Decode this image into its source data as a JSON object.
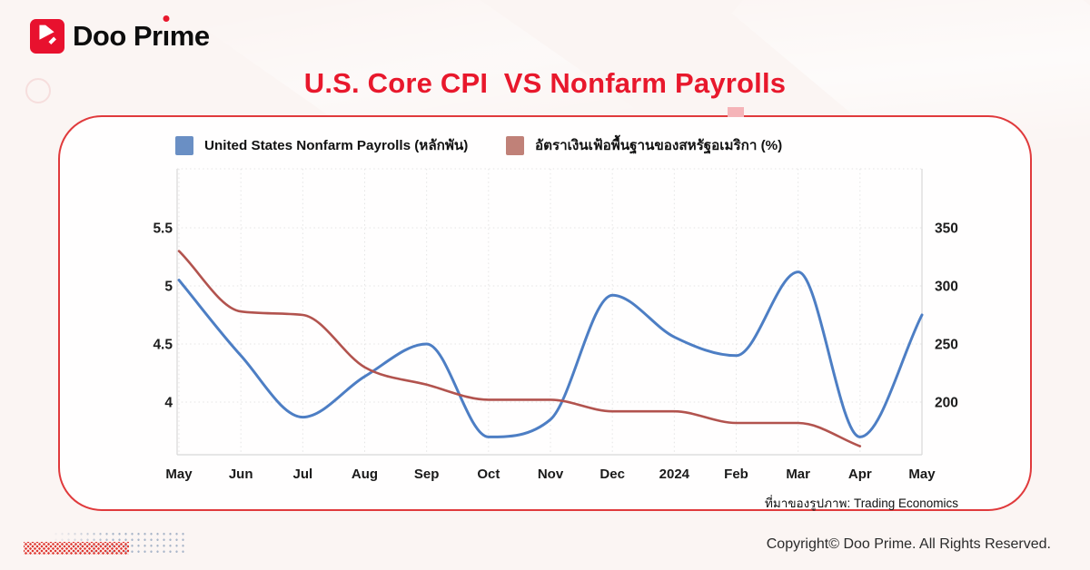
{
  "brand": "Doo Prime",
  "title": "U.S. Core CPI  VS Nonfarm Payrolls",
  "footer": {
    "copyright": "Copyright© Doo Prime. All Rights Reserved."
  },
  "colors": {
    "accent_red": "#e8182c",
    "logo_red": "#e8112e",
    "card_border": "#e03a3c",
    "notch_pink": "#f5b4b8",
    "payrolls_line": "#4d7ec4",
    "cpi_line": "#b2534e",
    "payrolls_swatch": "#6a8fc4",
    "cpi_swatch": "#c08178",
    "grid": "#e4e4e4",
    "axis_border": "#d8d8d8",
    "tick_text": "#1c1c1c"
  },
  "chart_data": {
    "type": "line",
    "title": "U.S. Core CPI VS Nonfarm Payrolls",
    "categories": [
      "May",
      "Jun",
      "Jul",
      "Aug",
      "Sep",
      "Oct",
      "Nov",
      "Dec",
      "2024",
      "Feb",
      "Mar",
      "Apr",
      "May"
    ],
    "series": [
      {
        "name": "United States Nonfarm Payrolls (หลักพัน)",
        "axis": "right",
        "color": "#4d7ec4",
        "swatch": "#6a8fc4",
        "values": [
          305,
          240,
          187,
          222,
          250,
          170,
          185,
          292,
          256,
          240,
          312,
          170,
          275
        ]
      },
      {
        "name": "อัตราเงินเฟ้อพื้นฐานของสหรัฐอเมริกา (%)",
        "axis": "left",
        "color": "#b2534e",
        "swatch": "#c08178",
        "values": [
          5.3,
          4.78,
          4.75,
          4.3,
          4.15,
          4.02,
          4.02,
          3.92,
          3.92,
          3.82,
          3.82,
          3.62,
          null
        ]
      }
    ],
    "left_axis": {
      "tick_labels": [
        "5.5",
        "5",
        "4.5",
        "4"
      ],
      "tick_values": [
        5.5,
        5,
        4.5,
        4
      ]
    },
    "right_axis": {
      "tick_labels": [
        "350",
        "300",
        "250",
        "200"
      ],
      "tick_values": [
        350,
        300,
        250,
        200
      ]
    },
    "grid": true,
    "legend_position": "top",
    "source": "ที่มาของรูปภาพ: Trading Economics"
  }
}
